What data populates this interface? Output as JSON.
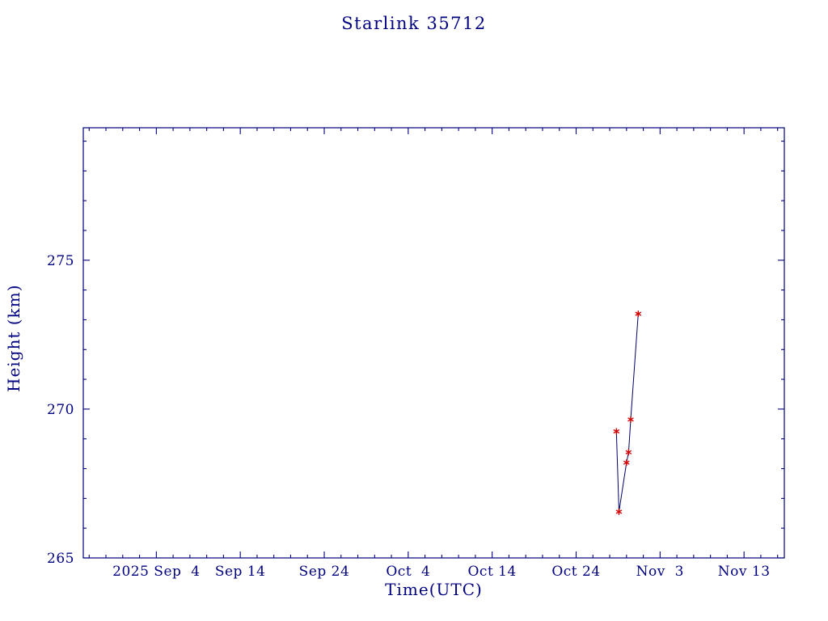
{
  "colors": {
    "background": "#ffffff",
    "axis": "#000080",
    "text": "#000080",
    "line": "#000066",
    "marker": "#d40000"
  },
  "chart_data": {
    "type": "line",
    "title": "Starlink 35712",
    "xlabel": "Time(UTC)",
    "ylabel": "Height (km)",
    "x_unit": "days since 2025 Sep 4",
    "xlim": [
      -8.7,
      74.8
    ],
    "ylim": [
      265,
      279.45
    ],
    "grid": false,
    "legend": "none",
    "x_major_ticks": [
      {
        "day": 0,
        "label": "2025 Sep  4"
      },
      {
        "day": 10,
        "label": "Sep 14"
      },
      {
        "day": 20,
        "label": "Sep 24"
      },
      {
        "day": 30,
        "label": "Oct  4"
      },
      {
        "day": 40,
        "label": "Oct 14"
      },
      {
        "day": 50,
        "label": "Oct 24"
      },
      {
        "day": 60,
        "label": "Nov  3"
      },
      {
        "day": 70,
        "label": "Nov 13"
      }
    ],
    "x_minor_step": 2,
    "y_major_ticks": [
      265,
      270,
      275
    ],
    "y_minor_step": 1,
    "series": [
      {
        "name": "Starlink 35712 height",
        "marker": "asterisk",
        "points": [
          {
            "date": "2025-10-28",
            "day": 54.8,
            "height_km": 269.25
          },
          {
            "date": "2025-10-29",
            "day": 55.1,
            "height_km": 266.55
          },
          {
            "date": "2025-10-30",
            "day": 56.0,
            "height_km": 268.2
          },
          {
            "date": "2025-10-30",
            "day": 56.25,
            "height_km": 268.55
          },
          {
            "date": "2025-10-30",
            "day": 56.5,
            "height_km": 269.65
          },
          {
            "date": "2025-10-31",
            "day": 57.4,
            "height_km": 273.2
          }
        ]
      }
    ]
  }
}
